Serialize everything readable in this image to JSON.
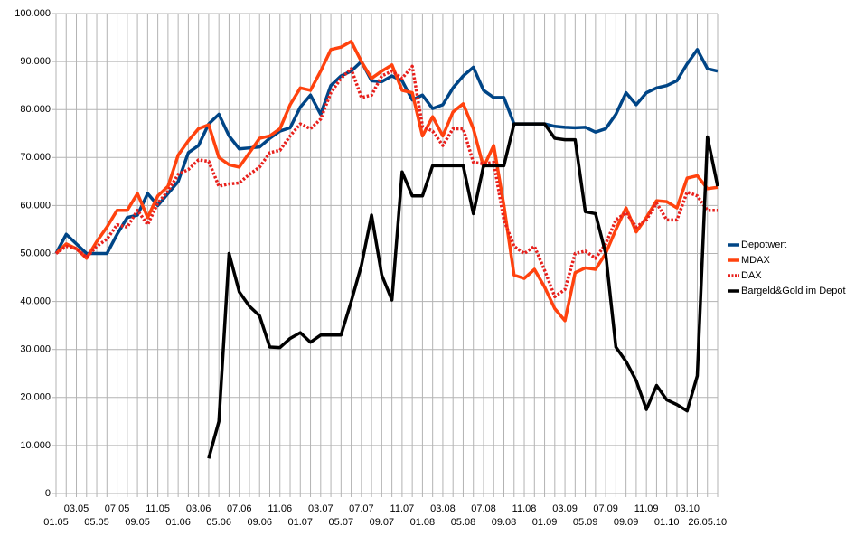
{
  "chart_data": {
    "type": "line",
    "categories": [
      "01.05",
      null,
      "03.05",
      null,
      "05.05",
      null,
      "07.05",
      null,
      "09.05",
      null,
      "11.05",
      null,
      "01.06",
      null,
      "03.06",
      null,
      "05.06",
      null,
      "07.06",
      null,
      "09.06",
      null,
      "11.06",
      null,
      "01.07",
      null,
      "03.07",
      null,
      "05.07",
      null,
      "07.07",
      null,
      "09.07",
      null,
      "11.07",
      null,
      "01.08",
      null,
      "03.08",
      null,
      "05.08",
      null,
      "07.08",
      null,
      "09.08",
      null,
      "11.08",
      null,
      "01.09",
      null,
      "03.09",
      null,
      "05.09",
      null,
      "07.09",
      null,
      "09.09",
      null,
      "11.09",
      null,
      "01.10",
      null,
      "03.10",
      null,
      "26.05.10",
      null
    ],
    "series": [
      {
        "name": "Depotwert",
        "color": "#004586",
        "style": "solid",
        "values": [
          50000,
          54000,
          52000,
          50000,
          50000,
          50000,
          54000,
          57500,
          58000,
          62500,
          60000,
          62500,
          65000,
          71000,
          72500,
          77000,
          79000,
          74500,
          71800,
          72000,
          72200,
          74000,
          75500,
          76200,
          80500,
          83000,
          79000,
          85000,
          87000,
          88000,
          90000,
          86000,
          85800,
          87000,
          86000,
          82000,
          83000,
          80200,
          81000,
          84500,
          87000,
          88800,
          84000,
          82500,
          82500,
          77000,
          77000,
          77000,
          77000,
          76500,
          76300,
          76200,
          76300,
          75300,
          76000,
          79000,
          83500,
          81000,
          83500,
          84500,
          85000,
          86000,
          89500,
          92500,
          88500,
          88000
        ]
      },
      {
        "name": "MDAX",
        "color": "#ff420e",
        "style": "solid",
        "values": [
          50000,
          52000,
          51000,
          49000,
          52500,
          55500,
          59000,
          59000,
          62500,
          57500,
          62000,
          64000,
          70500,
          73500,
          76000,
          76800,
          70000,
          68500,
          68000,
          71000,
          74000,
          74500,
          76000,
          81000,
          84500,
          84000,
          88000,
          92500,
          93000,
          94200,
          90000,
          86500,
          88000,
          89300,
          84000,
          83500,
          74500,
          78500,
          74500,
          79500,
          81200,
          76000,
          68000,
          72500,
          60000,
          45500,
          44800,
          46700,
          43000,
          38500,
          36000,
          46000,
          47000,
          46700,
          50000,
          55000,
          59500,
          54500,
          57500,
          61000,
          60800,
          59500,
          65700,
          66200,
          63500,
          63800
        ]
      },
      {
        "name": "DAX",
        "color": "#e8201c",
        "style": "dotted",
        "values": [
          50000,
          51500,
          51000,
          49200,
          51500,
          53000,
          56000,
          55500,
          59000,
          56000,
          60500,
          63000,
          66500,
          67500,
          69500,
          69200,
          64000,
          64500,
          64700,
          66500,
          68000,
          71000,
          71500,
          74500,
          77000,
          76000,
          78000,
          83500,
          86500,
          88500,
          82500,
          83000,
          87000,
          88000,
          86500,
          89000,
          76500,
          75500,
          72500,
          76000,
          76000,
          69000,
          68700,
          69000,
          57000,
          51500,
          50000,
          51500,
          46500,
          41000,
          42500,
          50000,
          50500,
          49000,
          52000,
          57000,
          58500,
          55500,
          57000,
          60500,
          57000,
          57000,
          62800,
          62000,
          59000,
          59000
        ]
      },
      {
        "name": "Bargeld&Gold im Depot",
        "color": "#000000",
        "style": "solid",
        "values": [
          null,
          null,
          null,
          null,
          null,
          null,
          null,
          null,
          null,
          null,
          null,
          null,
          null,
          null,
          null,
          7300,
          15000,
          50000,
          42000,
          39000,
          37000,
          30500,
          30400,
          32300,
          33500,
          31500,
          33000,
          33000,
          33000,
          40000,
          47500,
          58000,
          45500,
          40300,
          67000,
          62000,
          62000,
          68300,
          68300,
          68300,
          68300,
          58300,
          68300,
          68300,
          68300,
          77000,
          77000,
          77000,
          77000,
          74000,
          73700,
          73700,
          58700,
          58300,
          50000,
          30500,
          27500,
          23500,
          17500,
          22500,
          19500,
          18500,
          17200,
          24500,
          74300,
          64000
        ]
      }
    ],
    "ylim": [
      0,
      100000
    ],
    "yticks": [
      0,
      {
        "value": 10000,
        "label": "10.000"
      },
      {
        "value": 20000,
        "label": "20.000"
      },
      {
        "value": 30000,
        "label": "30.000"
      },
      {
        "value": 40000,
        "label": "40.000"
      },
      {
        "value": 50000,
        "label": "50.000"
      },
      {
        "value": 60000,
        "label": "60.000"
      },
      {
        "value": 70000,
        "label": "70.000"
      },
      {
        "value": 80000,
        "label": "80.000"
      },
      {
        "value": 90000,
        "label": "90.000"
      },
      {
        "value": 100000,
        "label": "100.000"
      }
    ],
    "grid": true,
    "legend": "right"
  }
}
